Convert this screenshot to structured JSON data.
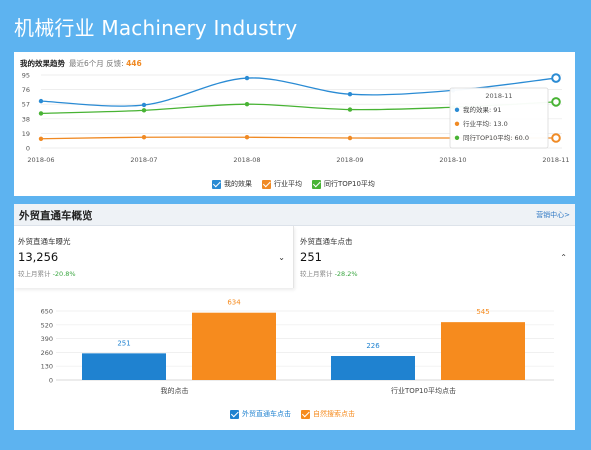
{
  "page_title": "机械行业 Machinery Industry",
  "trend": {
    "title": "我的效果趋势",
    "subtitle": "最近6个月 反馈:",
    "feedback_count": "446",
    "y_ticks": [
      "95",
      "76",
      "57",
      "38",
      "19",
      "0"
    ],
    "tooltip": {
      "date": "2018-11",
      "rows": [
        {
          "label": "我的效果: 91",
          "color": "#2a8bd4"
        },
        {
          "label": "行业平均: 13.0",
          "color": "#f08a24"
        },
        {
          "label": "同行TOP10平均: 60.0",
          "color": "#48b334"
        }
      ]
    },
    "legend": [
      {
        "label": "我的效果",
        "color": "#2a8bd4"
      },
      {
        "label": "行业平均",
        "color": "#f08a24"
      },
      {
        "label": "同行TOP10平均",
        "color": "#48b334"
      }
    ]
  },
  "overview": {
    "title": "外贸直通车概览",
    "link": "营销中心>",
    "metrics": [
      {
        "label": "外贸直通车曝光",
        "value": "13,256",
        "arrow": "⌄",
        "compare_label": "较上月累计",
        "compare_value": "-20.8%"
      },
      {
        "label": "外贸直通车点击",
        "value": "251",
        "arrow": "⌃",
        "compare_label": "较上月累计",
        "compare_value": "-28.2%"
      }
    ],
    "legend": [
      {
        "label": "外贸直通车点击",
        "color": "#1f82d0"
      },
      {
        "label": "自然搜索点击",
        "color": "#f68b1e"
      }
    ]
  },
  "chart_data": [
    {
      "type": "line",
      "title": "我的效果趋势",
      "x": [
        "2018-06",
        "2018-07",
        "2018-08",
        "2018-09",
        "2018-10",
        "2018-11"
      ],
      "ylim": [
        0,
        95
      ],
      "y_ticks": [
        0,
        19,
        38,
        57,
        76,
        95
      ],
      "grid": true,
      "series": [
        {
          "name": "我的效果",
          "color": "#2a8bd4",
          "values": [
            61,
            56,
            91,
            70,
            75,
            91
          ]
        },
        {
          "name": "行业平均",
          "color": "#f08a24",
          "values": [
            12,
            14,
            14,
            13,
            13,
            13
          ]
        },
        {
          "name": "同行TOP10平均",
          "color": "#48b334",
          "values": [
            45,
            49,
            57,
            50,
            53,
            60
          ]
        }
      ]
    },
    {
      "type": "bar",
      "categories": [
        "我的点击",
        "行业TOP10平均点击"
      ],
      "ylim": [
        0,
        650
      ],
      "y_ticks": [
        0,
        130,
        260,
        390,
        520,
        650
      ],
      "grid": true,
      "series": [
        {
          "name": "外贸直通车点击",
          "color": "#1f82d0",
          "values": [
            251,
            226
          ]
        },
        {
          "name": "自然搜索点击",
          "color": "#f68b1e",
          "values": [
            634,
            545
          ]
        }
      ]
    }
  ]
}
